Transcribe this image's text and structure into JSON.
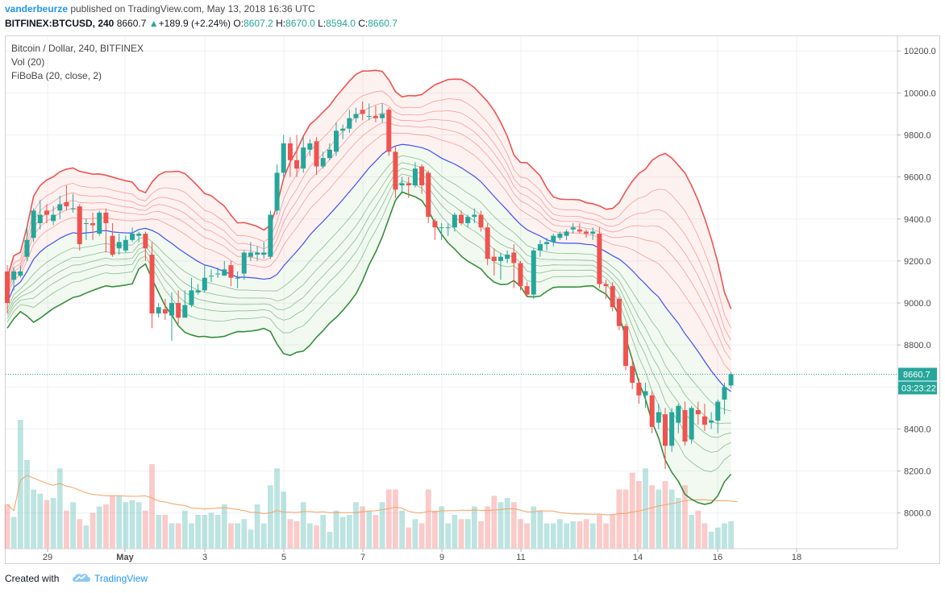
{
  "header": {
    "author": "vanderbeurze",
    "published_text": "published on TradingView.com, May 13, 2018 16:36 UTC",
    "symbol": "BITFINEX:BTCUSD, 240",
    "last": "8660.7",
    "change_arrow": "▲",
    "change": "+189.9 (+2.24%)",
    "o_label": "O:",
    "o_value": "8607.2",
    "h_label": "H:",
    "h_value": "8670.0",
    "l_label": "L:",
    "l_value": "8594.0",
    "c_label": "C:",
    "c_value": "8660.7"
  },
  "legend": {
    "title": "Bitcoin / Dollar, 240, BITFINEX",
    "vol": "Vol (20)",
    "indicator": "FiBoBa (20, close, 2)"
  },
  "footer": {
    "created_with": "Created with",
    "brand": "TradingView",
    "logo_icon": "tradingview-cloud-icon"
  },
  "colors": {
    "up": "#26a69a",
    "down": "#ef5350",
    "upper_band": "#ef5350",
    "basis": "#3f51f7",
    "lower_band": "#388e3c",
    "vol_ma": "#f4a261",
    "last_price": "#26a69a",
    "accent": "#2196f3"
  },
  "price_axis": {
    "label": "8660.7",
    "countdown": "03:23:22"
  },
  "chart_data": {
    "type": "candlestick",
    "title": "Bitcoin / Dollar, 240, BITFINEX",
    "ylim": [
      7830,
      10270
    ],
    "y_ticks": [
      "10200.0",
      "10000.0",
      "9800.0",
      "9600.0",
      "9400.0",
      "9200.0",
      "9000.0",
      "8800.0",
      "8600.0",
      "8400.0",
      "8200.0",
      "8000.0"
    ],
    "x_ticks": [
      "29",
      "May",
      "3",
      "5",
      "7",
      "9",
      "11",
      "14",
      "16",
      "18"
    ],
    "last_price": 8660.7,
    "candles": [
      [
        9150,
        9000,
        9180,
        8950
      ],
      [
        9110,
        9150,
        9170,
        9060
      ],
      [
        9130,
        9150,
        9180,
        9120
      ],
      [
        9220,
        9300,
        9370,
        9200
      ],
      [
        9310,
        9440,
        9450,
        9290
      ],
      [
        9380,
        9420,
        9490,
        9350
      ],
      [
        9440,
        9420,
        9470,
        9380
      ],
      [
        9390,
        9420,
        9460,
        9370
      ],
      [
        9440,
        9470,
        9510,
        9400
      ],
      [
        9480,
        9460,
        9560,
        9440
      ],
      [
        9450,
        9450,
        9520,
        9430
      ],
      [
        9460,
        9280,
        9470,
        9250
      ],
      [
        9380,
        9380,
        9400,
        9300
      ],
      [
        9380,
        9370,
        9430,
        9300
      ],
      [
        9330,
        9430,
        9440,
        9320
      ],
      [
        9430,
        9380,
        9450,
        9240
      ],
      [
        9320,
        9230,
        9380,
        9220
      ],
      [
        9260,
        9290,
        9330,
        9230
      ],
      [
        9250,
        9300,
        9320,
        9240
      ],
      [
        9300,
        9330,
        9360,
        9290
      ],
      [
        9320,
        9330,
        9340,
        9290
      ],
      [
        9330,
        9260,
        9340,
        9200
      ],
      [
        9230,
        8950,
        9290,
        8880
      ],
      [
        8950,
        8980,
        9000,
        8930
      ],
      [
        8970,
        8950,
        9020,
        8920
      ],
      [
        8940,
        9000,
        9050,
        8820
      ],
      [
        9000,
        8930,
        9060,
        8900
      ],
      [
        8930,
        8990,
        9060,
        8950
      ],
      [
        8990,
        9060,
        9120,
        8980
      ],
      [
        9050,
        9060,
        9090,
        9040
      ],
      [
        9060,
        9120,
        9180,
        9050
      ],
      [
        9130,
        9130,
        9160,
        9100
      ],
      [
        9140,
        9140,
        9170,
        9120
      ],
      [
        9130,
        9160,
        9200,
        9130
      ],
      [
        9180,
        9120,
        9200,
        9080
      ],
      [
        9120,
        9120,
        9150,
        9070
      ],
      [
        9140,
        9240,
        9250,
        9110
      ],
      [
        9220,
        9240,
        9290,
        9200
      ],
      [
        9230,
        9240,
        9270,
        9200
      ],
      [
        9230,
        9240,
        9290,
        9210
      ],
      [
        9220,
        9420,
        9440,
        9210
      ],
      [
        9440,
        9620,
        9660,
        9420
      ],
      [
        9620,
        9760,
        9800,
        9600
      ],
      [
        9760,
        9680,
        9790,
        9600
      ],
      [
        9680,
        9640,
        9800,
        9600
      ],
      [
        9640,
        9740,
        9790,
        9620
      ],
      [
        9730,
        9760,
        9780,
        9700
      ],
      [
        9770,
        9650,
        9790,
        9610
      ],
      [
        9650,
        9690,
        9720,
        9640
      ],
      [
        9690,
        9730,
        9760,
        9680
      ],
      [
        9720,
        9820,
        9860,
        9700
      ],
      [
        9820,
        9830,
        9850,
        9780
      ],
      [
        9830,
        9880,
        9920,
        9810
      ],
      [
        9880,
        9900,
        9930,
        9860
      ],
      [
        9920,
        9900,
        9960,
        9870
      ],
      [
        9890,
        9890,
        9950,
        9870
      ],
      [
        9890,
        9880,
        9940,
        9860
      ],
      [
        9880,
        9900,
        9950,
        9860
      ],
      [
        9920,
        9720,
        9930,
        9700
      ],
      [
        9720,
        9540,
        9750,
        9500
      ],
      [
        9560,
        9570,
        9600,
        9520
      ],
      [
        9570,
        9560,
        9600,
        9500
      ],
      [
        9560,
        9640,
        9670,
        9550
      ],
      [
        9650,
        9560,
        9660,
        9520
      ],
      [
        9620,
        9410,
        9630,
        9380
      ],
      [
        9390,
        9360,
        9400,
        9300
      ],
      [
        9360,
        9360,
        9380,
        9300
      ],
      [
        9360,
        9360,
        9380,
        9320
      ],
      [
        9360,
        9420,
        9430,
        9340
      ],
      [
        9420,
        9380,
        9440,
        9370
      ],
      [
        9380,
        9410,
        9420,
        9360
      ],
      [
        9410,
        9420,
        9450,
        9380
      ],
      [
        9420,
        9360,
        9440,
        9340
      ],
      [
        9360,
        9210,
        9380,
        9180
      ],
      [
        9220,
        9200,
        9260,
        9130
      ],
      [
        9200,
        9220,
        9240,
        9110
      ],
      [
        9210,
        9230,
        9250,
        9190
      ],
      [
        9240,
        9190,
        9280,
        9070
      ],
      [
        9190,
        9080,
        9200,
        9060
      ],
      [
        9080,
        9040,
        9100,
        9030
      ],
      [
        9040,
        9250,
        9260,
        9020
      ],
      [
        9250,
        9280,
        9300,
        9220
      ],
      [
        9280,
        9290,
        9310,
        9250
      ],
      [
        9290,
        9320,
        9330,
        9270
      ],
      [
        9310,
        9330,
        9340,
        9300
      ],
      [
        9320,
        9340,
        9350,
        9300
      ],
      [
        9350,
        9360,
        9380,
        9330
      ],
      [
        9350,
        9340,
        9380,
        9330
      ],
      [
        9340,
        9330,
        9350,
        9310
      ],
      [
        9330,
        9340,
        9360,
        9300
      ],
      [
        9330,
        9090,
        9360,
        9070
      ],
      [
        9090,
        9080,
        9110,
        9020
      ],
      [
        9080,
        8980,
        9100,
        8960
      ],
      [
        9020,
        8890,
        9030,
        8870
      ],
      [
        8890,
        8700,
        8900,
        8680
      ],
      [
        8700,
        8620,
        8740,
        8590
      ],
      [
        8620,
        8560,
        8640,
        8520
      ],
      [
        8560,
        8580,
        8620,
        8500
      ],
      [
        8560,
        8410,
        8580,
        8380
      ],
      [
        8430,
        8480,
        8520,
        8400
      ],
      [
        8470,
        8320,
        8500,
        8210
      ],
      [
        8320,
        8480,
        8500,
        8290
      ],
      [
        8430,
        8510,
        8520,
        8380
      ],
      [
        8490,
        8340,
        8530,
        8320
      ],
      [
        8350,
        8500,
        8510,
        8330
      ],
      [
        8490,
        8470,
        8530,
        8420
      ],
      [
        8460,
        8420,
        8520,
        8390
      ],
      [
        8430,
        8440,
        8480,
        8400
      ],
      [
        8440,
        8530,
        8540,
        8380
      ],
      [
        8540,
        8600,
        8620,
        8470
      ],
      [
        8607.2,
        8660.7,
        8670,
        8594
      ]
    ],
    "volume": [
      21,
      15,
      61,
      42,
      28,
      26,
      23,
      24,
      38,
      18,
      22,
      14,
      11,
      17,
      20,
      21,
      25,
      25,
      22,
      23,
      22,
      18,
      40,
      16,
      16,
      12,
      12,
      18,
      12,
      16,
      16,
      17,
      16,
      21,
      12,
      12,
      14,
      9,
      21,
      12,
      30,
      38,
      27,
      14,
      13,
      22,
      12,
      11,
      16,
      8,
      18,
      15,
      16,
      22,
      20,
      18,
      16,
      22,
      28,
      28,
      18,
      10,
      14,
      12,
      28,
      18,
      20,
      12,
      16,
      14,
      14,
      20,
      13,
      20,
      25,
      22,
      24,
      22,
      14,
      12,
      20,
      18,
      12,
      12,
      14,
      12,
      13,
      13,
      14,
      12,
      16,
      12,
      16,
      28,
      28,
      36,
      32,
      38,
      30,
      28,
      32,
      28,
      24,
      30,
      16,
      18,
      12,
      8,
      10,
      12,
      13,
      5
    ],
    "vol_scale_max": 61
  }
}
